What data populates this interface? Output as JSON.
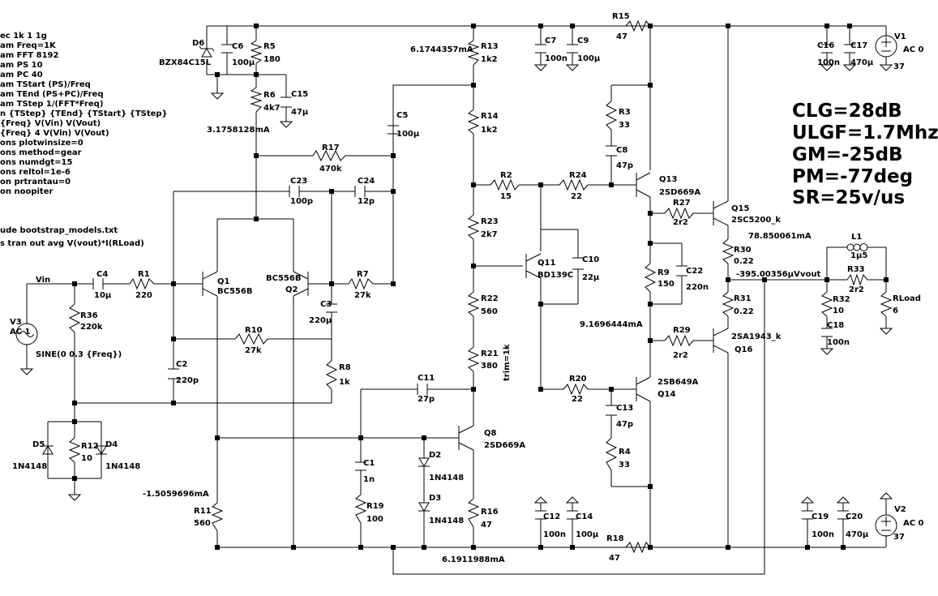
{
  "spice_directives": [
    "ec 1k 1 1g",
    "am Freq=1K",
    "am FFT 8192",
    "am PS 10",
    "am PC 40",
    "am TStart (PS)/Freq",
    "am TEnd (PS+PC)/Freq",
    "am TStep 1/(FFT*Freq)",
    "n {TStep} {TEnd} {TStart} {TStep}",
    " {Freq} V(Vin) V(Vout)",
    " {Freq} 4 V(Vin) V(Vout)",
    "ons plotwinsize=0",
    "ons method=gear",
    "ons numdgt=15",
    "ons reltol=1e-6",
    "on prtrantau=0",
    "on noopiter",
    "",
    "ude bootstrap_models.txt",
    "",
    "s tran out avg V(vout)*I(RLoad)"
  ],
  "summary": [
    "CLG=28dB",
    "ULGF=1.7Mhz",
    "GM=-25dB",
    "PM=-77deg",
    "SR=25v/us"
  ],
  "measurements": {
    "m1": "6.1744357mA",
    "m2": "3.1758128mA",
    "m3": "78.850061mA",
    "m4": "-395.00356µV",
    "m5": "9.1696444mA",
    "m6": "-1.5059696mA",
    "m7": "6.1911988mA"
  },
  "nets": {
    "vin": "Vin",
    "vout": "vout",
    "trim": "trim=1k",
    "sine": "SINE(0 0.3 {Freq})"
  },
  "components": {
    "D6": [
      "D6",
      "BZX84C15L"
    ],
    "C6": [
      "C6",
      "100µ"
    ],
    "R5": [
      "R5",
      "180"
    ],
    "R6": [
      "R6",
      "4k7"
    ],
    "C15": [
      "C15",
      "47µ"
    ],
    "R13": [
      "R13",
      "1k2"
    ],
    "C7": [
      "C7",
      "100n"
    ],
    "C9": [
      "C9",
      "100µ"
    ],
    "R15": [
      "R15",
      "47"
    ],
    "C16": [
      "C16",
      "100n"
    ],
    "C17": [
      "C17",
      "470µ"
    ],
    "V1": [
      "V1",
      "AC 0",
      "37"
    ],
    "C5": [
      "C5",
      "100µ"
    ],
    "R14": [
      "R14",
      "1k2"
    ],
    "R3": [
      "R3",
      "33"
    ],
    "C8": [
      "C8",
      "47p"
    ],
    "R17": [
      "R17",
      "470k"
    ],
    "C23": [
      "C23",
      "100p"
    ],
    "C24": [
      "C24",
      "12p"
    ],
    "R2": [
      "R2",
      "15"
    ],
    "R24": [
      "R24",
      "22"
    ],
    "Q13": [
      "Q13",
      "2SD669A"
    ],
    "R27": [
      "R27",
      "2r2"
    ],
    "Q15": [
      "Q15",
      "2SC5200_k"
    ],
    "R23": [
      "R23",
      "2k7"
    ],
    "R30": [
      "R30",
      "0.22"
    ],
    "L1": [
      "L1",
      "1µ5"
    ],
    "R33": [
      "R33",
      "2r2"
    ],
    "Q11": [
      "Q11",
      "BD139C"
    ],
    "C10": [
      "C10",
      "22µ"
    ],
    "R9": [
      "R9",
      "150"
    ],
    "C22": [
      "C22",
      "220n"
    ],
    "C4": [
      "C4",
      "10µ"
    ],
    "R1": [
      "R1",
      "220"
    ],
    "Q1": [
      "Q1",
      "BC556B"
    ],
    "Q2": [
      "BC556B",
      "Q2"
    ],
    "R7": [
      "R7",
      "27k"
    ],
    "C3": [
      "C3",
      "220µ"
    ],
    "R36": [
      "R36",
      "220k"
    ],
    "V3": [
      "V3",
      "AC 1"
    ],
    "R22": [
      "R22",
      "560"
    ],
    "R31": [
      "R31",
      "0.22"
    ],
    "R32": [
      "R32",
      "10"
    ],
    "RLoad": [
      "RLoad",
      "6"
    ],
    "C18": [
      "C18",
      "100n"
    ],
    "R10": [
      "R10",
      "27k"
    ],
    "R29": [
      "R29",
      "2r2"
    ],
    "Q16": [
      "2SA1943_k",
      "Q16"
    ],
    "C2": [
      "C2",
      "220p"
    ],
    "R8": [
      "R8",
      "1k"
    ],
    "R21": [
      "R21",
      "380"
    ],
    "C11": [
      "C11",
      "27p"
    ],
    "R20": [
      "R20",
      "22"
    ],
    "Q14": [
      "2SB649A",
      "Q14"
    ],
    "C13": [
      "C13",
      "47p"
    ],
    "Q8": [
      "Q8",
      "2SD669A"
    ],
    "D2": [
      "D2",
      "1N4148"
    ],
    "D3": [
      "D3",
      "1N4148"
    ],
    "R4": [
      "R4",
      "33"
    ],
    "D5": [
      "D5",
      "1N4148"
    ],
    "R12": [
      "R12",
      "10"
    ],
    "D4": [
      "D4",
      "1N4148"
    ],
    "C1": [
      "C1",
      "1n"
    ],
    "R19": [
      "R19",
      "100"
    ],
    "R11": [
      "R11",
      "560"
    ],
    "R16": [
      "R16",
      "47"
    ],
    "C12": [
      "C12",
      "100n"
    ],
    "C14": [
      "C14",
      "100µ"
    ],
    "R18": [
      "R18",
      "47"
    ],
    "C19": [
      "C19",
      "100n"
    ],
    "C20": [
      "C20",
      "470µ"
    ],
    "V2": [
      "V2",
      "AC 0",
      "37"
    ]
  }
}
